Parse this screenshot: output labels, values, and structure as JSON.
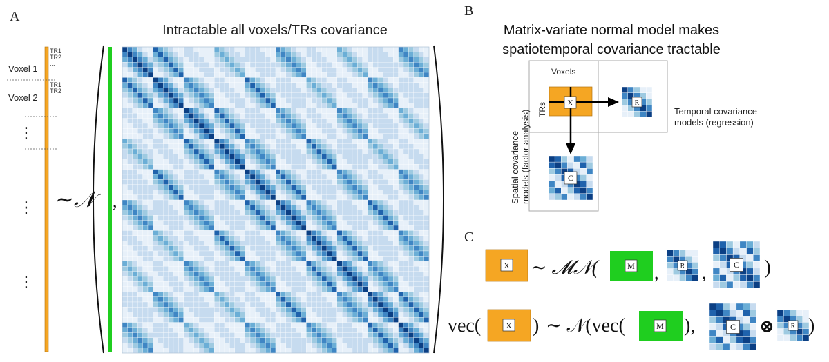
{
  "panel_a": {
    "label": "A",
    "title": "Intractable all voxels/TRs covariance",
    "voxel1_label": "Voxel 1",
    "voxel2_label": "Voxel 2",
    "tr1_label": "TR1",
    "tr2_label": "TR2",
    "ellipsis_h": "...",
    "ellipsis_v": "⋮",
    "tilde_normal": "∼𝒩",
    "comma": ",",
    "colors": {
      "orange": "#F5A623",
      "green": "#1FCE1F",
      "dark_blue": "#0B3F84",
      "light_blue": "#D6E6F4"
    }
  },
  "panel_b": {
    "label": "B",
    "title_line1": "Matrix-variate normal model makes",
    "title_line2": "spatiotemporal covariance tractable",
    "voxels_label": "Voxels",
    "trs_label": "TRs",
    "x_label": "X",
    "r_label": "R",
    "c_label": "C",
    "temporal_line1": "Temporal covariance",
    "temporal_line2": "models (regression)",
    "spatial_line1": "Spatial covariance",
    "spatial_line2": "models (factor analysis)"
  },
  "panel_c": {
    "label": "C",
    "eq1": {
      "x": "X",
      "tilde_mn": "∼ 𝓜𝒩(",
      "m": "M",
      "comma1": ",",
      "r": "R",
      "comma2": ",",
      "c": "C",
      "close": ")"
    },
    "eq2": {
      "vec1": "vec(",
      "x": "X",
      "close1": ")",
      "tilde_n": "∼ 𝒩(vec(",
      "m": "M",
      "close2": "),",
      "c": "C",
      "otimes": "⊗",
      "r": "R",
      "close3": ")"
    }
  }
}
